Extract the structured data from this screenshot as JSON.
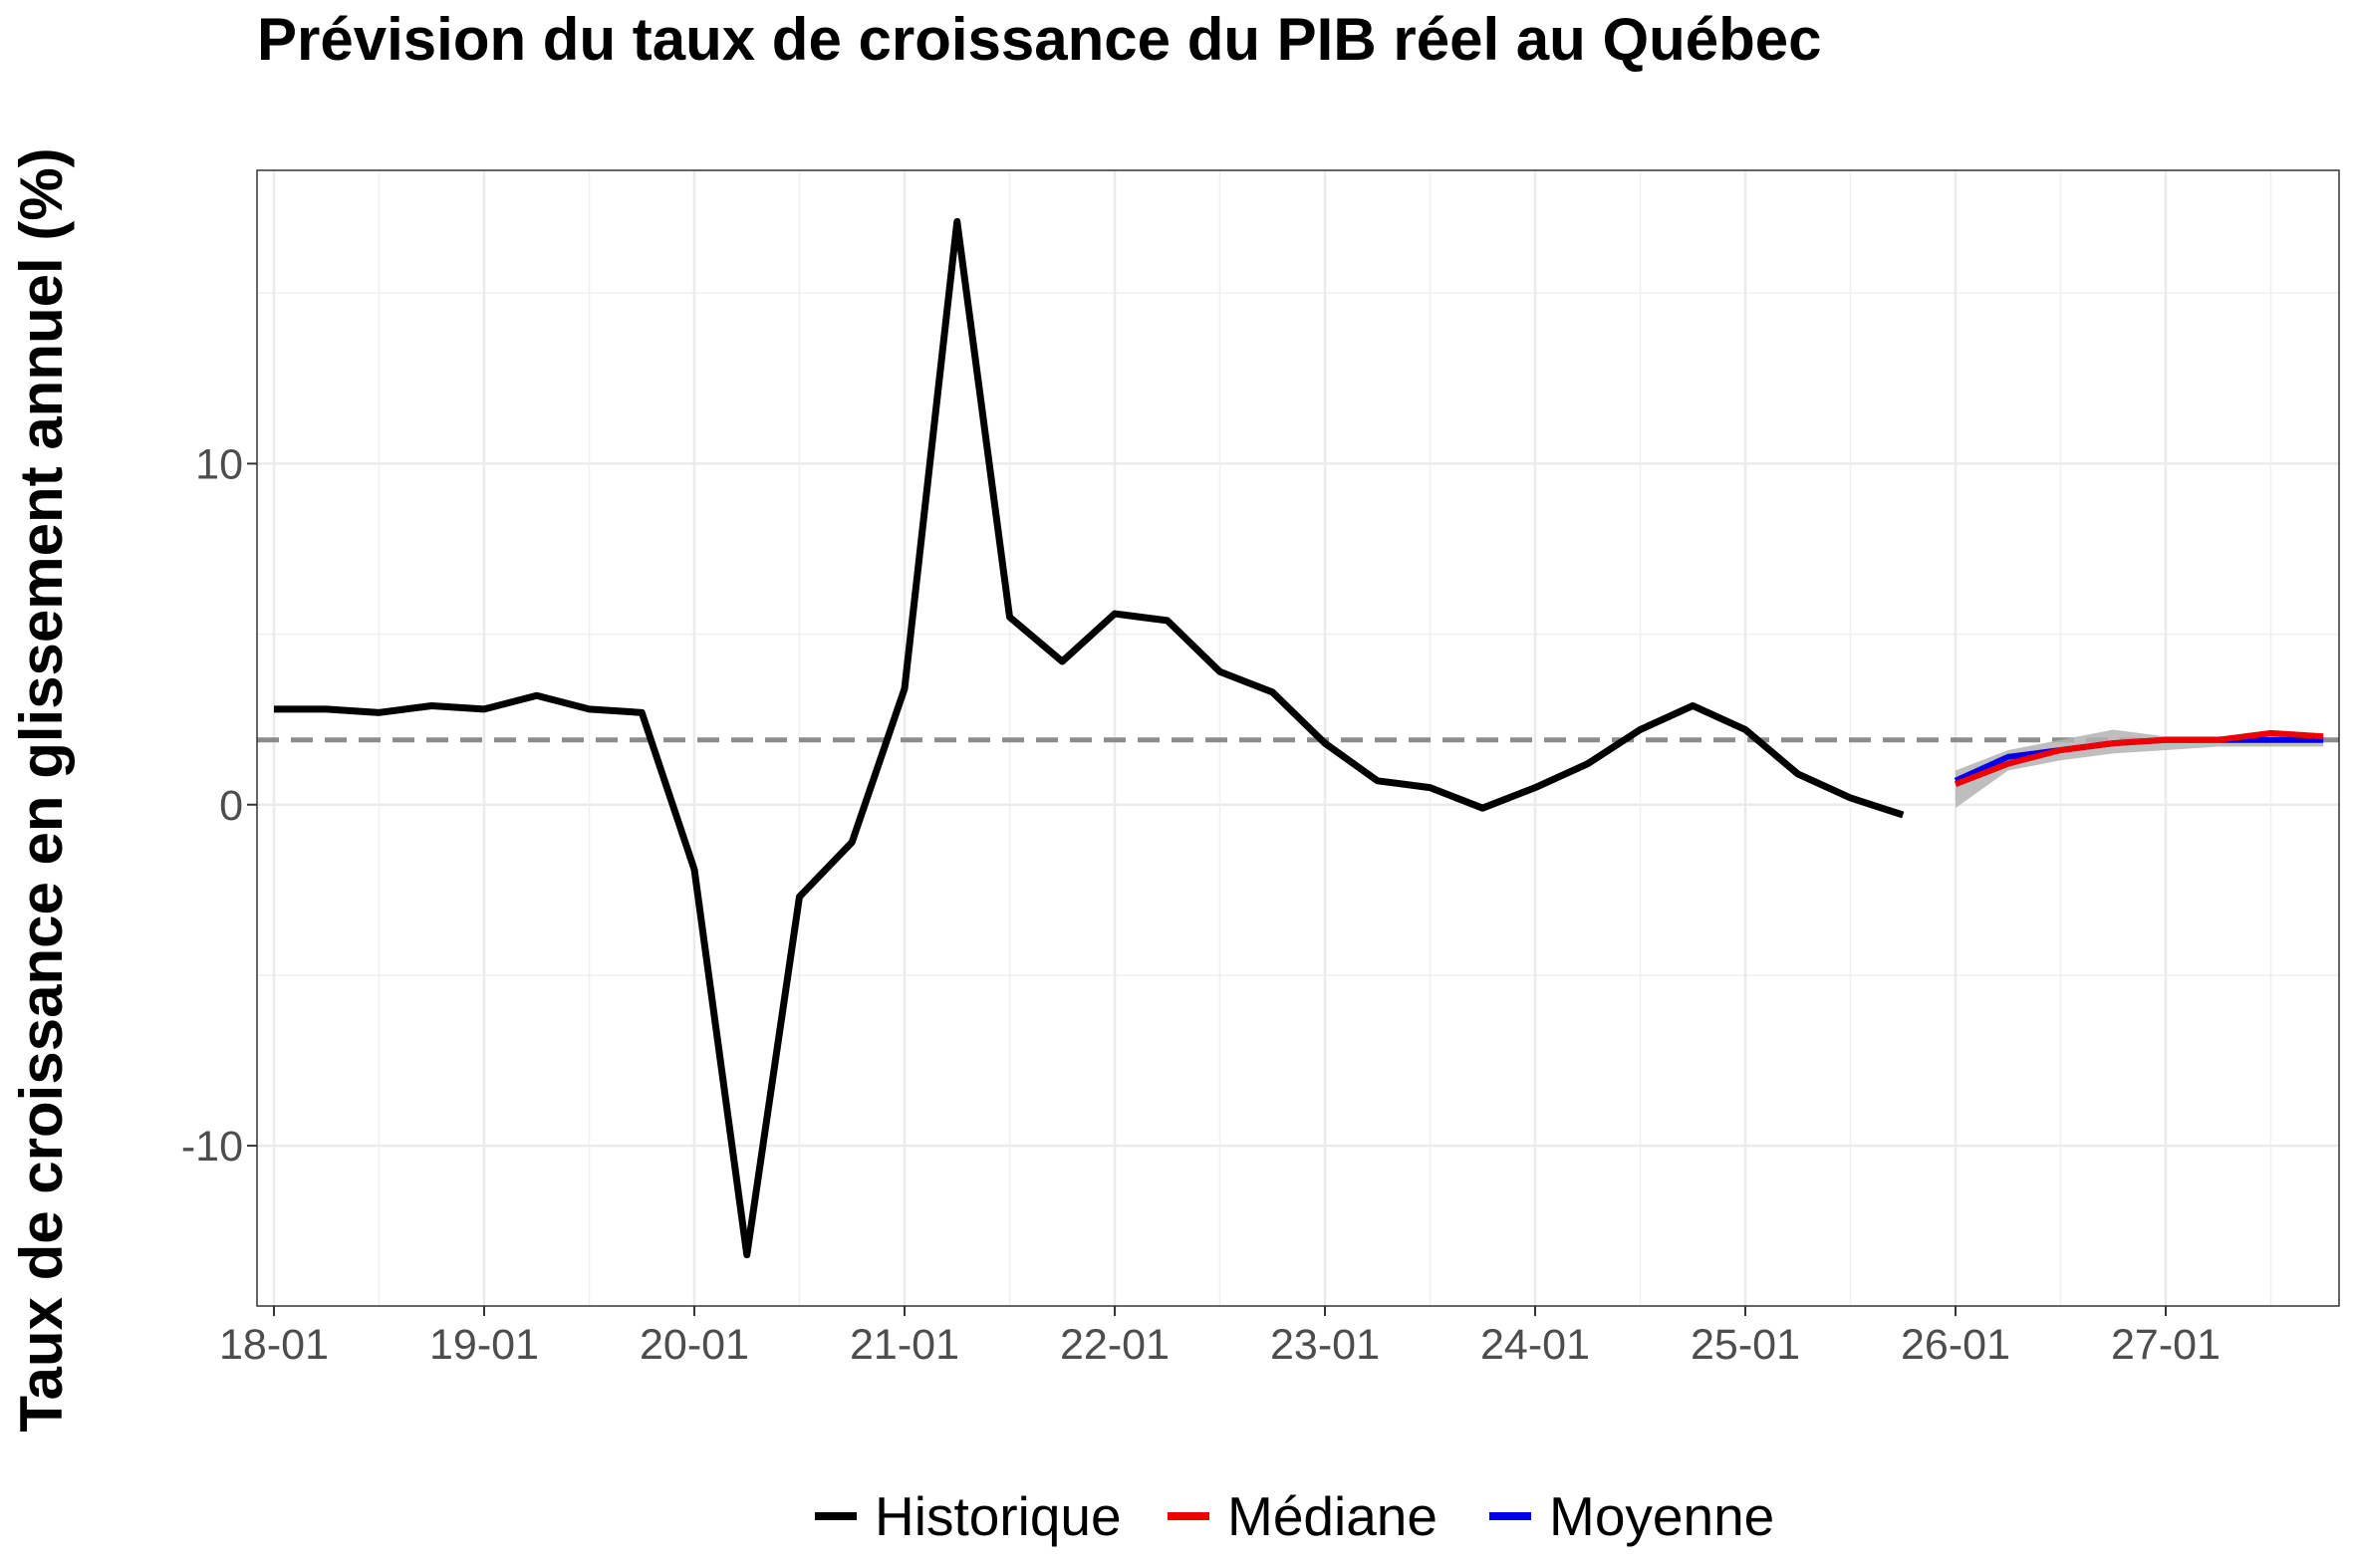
{
  "chart_data": {
    "type": "line",
    "title": "Prévision du taux de croissance du PIB réel au Québec",
    "xlabel": "",
    "ylabel": "Taux de croissance en glissement annuel (%)",
    "x_tick_labels": [
      "18-01",
      "19-01",
      "20-01",
      "21-01",
      "22-01",
      "23-01",
      "24-01",
      "25-01",
      "26-01",
      "27-01"
    ],
    "y_ticks": [
      10,
      0,
      -10
    ],
    "y_tick_labels": [
      "10",
      "0",
      "-10"
    ],
    "ylim": [
      -14.7,
      18.6
    ],
    "grid": true,
    "legend_position": "bottom",
    "reference_line": {
      "y": 1.9,
      "style": "dashed",
      "color": "#8c8c8c"
    },
    "series": [
      {
        "name": "Historique",
        "color": "#000000",
        "x": [
          "2018-Q1",
          "2018-Q2",
          "2018-Q3",
          "2018-Q4",
          "2019-Q1",
          "2019-Q2",
          "2019-Q3",
          "2019-Q4",
          "2020-Q1",
          "2020-Q2",
          "2020-Q3",
          "2020-Q4",
          "2021-Q1",
          "2021-Q2",
          "2021-Q3",
          "2021-Q4",
          "2022-Q1",
          "2022-Q2",
          "2022-Q3",
          "2022-Q4",
          "2023-Q1",
          "2023-Q2",
          "2023-Q3",
          "2023-Q4",
          "2024-Q1",
          "2024-Q2",
          "2024-Q3",
          "2024-Q4",
          "2025-Q1",
          "2025-Q2",
          "2025-Q3",
          "2025-Q4"
        ],
        "values": [
          2.8,
          2.8,
          2.7,
          2.9,
          2.8,
          3.2,
          2.8,
          2.7,
          -1.9,
          -13.2,
          -2.7,
          -1.1,
          3.4,
          17.1,
          5.5,
          4.2,
          5.6,
          5.4,
          3.9,
          3.3,
          1.8,
          0.7,
          0.5,
          -0.1,
          0.5,
          1.2,
          2.2,
          2.9,
          2.2,
          0.9,
          0.2,
          -0.3
        ]
      },
      {
        "name": "Médiane",
        "color": "#ee0000",
        "x": [
          "2026-Q1",
          "2026-Q2",
          "2026-Q3",
          "2026-Q4",
          "2027-Q1",
          "2027-Q2",
          "2027-Q3",
          "2027-Q4"
        ],
        "values": [
          0.6,
          1.2,
          1.6,
          1.8,
          1.9,
          1.9,
          2.1,
          2.0
        ]
      },
      {
        "name": "Moyenne",
        "color": "#0000ee",
        "x": [
          "2026-Q1",
          "2026-Q2",
          "2026-Q3",
          "2026-Q4",
          "2027-Q1",
          "2027-Q2",
          "2027-Q3",
          "2027-Q4"
        ],
        "values": [
          0.7,
          1.4,
          1.6,
          1.8,
          1.9,
          1.9,
          1.9,
          1.9
        ]
      }
    ],
    "band": {
      "color": "#b3b3b3",
      "x": [
        "2026-Q1",
        "2026-Q2",
        "2026-Q3",
        "2026-Q4",
        "2027-Q1",
        "2027-Q2",
        "2027-Q3",
        "2027-Q4"
      ],
      "lower": [
        -0.1,
        1.0,
        1.3,
        1.5,
        1.6,
        1.7,
        1.7,
        1.7
      ],
      "upper": [
        1.0,
        1.6,
        1.9,
        2.2,
        2.0,
        2.0,
        2.1,
        2.0
      ]
    }
  }
}
